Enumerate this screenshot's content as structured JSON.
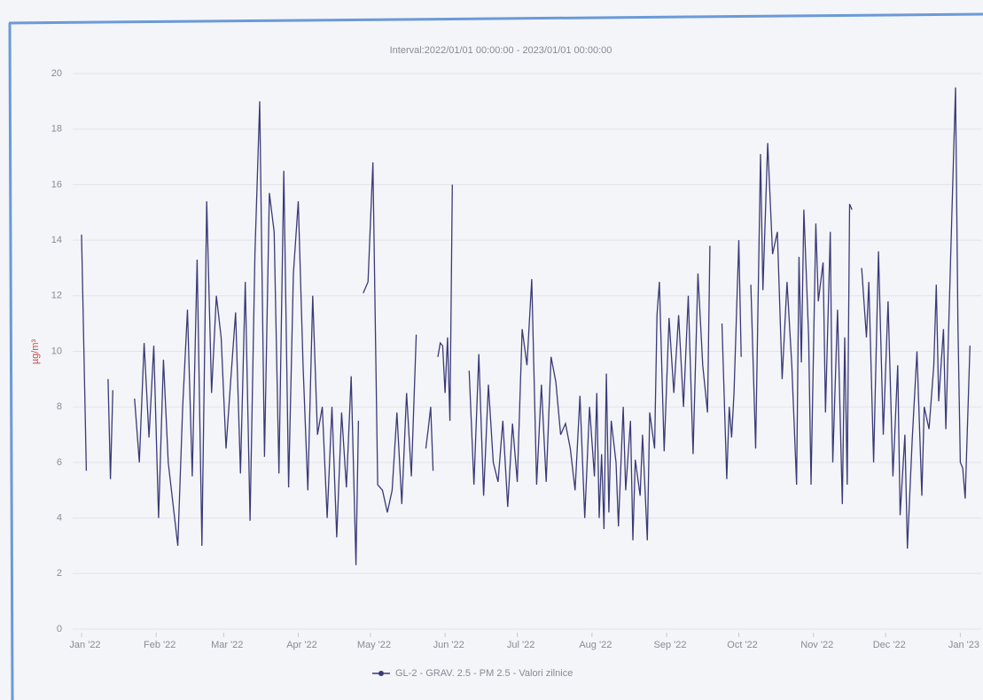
{
  "chart_data": {
    "type": "line",
    "title": "Interval:2022/01/01 00:00:00 - 2023/01/01 00:00:00",
    "y_label": "µg/m³",
    "xlim": [
      0,
      370
    ],
    "ylim": [
      0,
      20
    ],
    "yticks": [
      0,
      2,
      4,
      6,
      8,
      10,
      12,
      14,
      16,
      18,
      20
    ],
    "xticks": [
      {
        "value": 0,
        "label": "Jan '22"
      },
      {
        "value": 31,
        "label": "Feb '22"
      },
      {
        "value": 59,
        "label": "Mar '22"
      },
      {
        "value": 90,
        "label": "Apr '22"
      },
      {
        "value": 120,
        "label": "May '22"
      },
      {
        "value": 151,
        "label": "Jun '22"
      },
      {
        "value": 181,
        "label": "Jul '22"
      },
      {
        "value": 212,
        "label": "Aug '22"
      },
      {
        "value": 243,
        "label": "Sep '22"
      },
      {
        "value": 273,
        "label": "Oct '22"
      },
      {
        "value": 304,
        "label": "Nov '22"
      },
      {
        "value": 334,
        "label": "Dec '22"
      },
      {
        "value": 365,
        "label": "Jan '23"
      }
    ],
    "grid": true,
    "legend": "bottom",
    "x": [
      0,
      2,
      null,
      11,
      12,
      13,
      null,
      22,
      24,
      26,
      28,
      30,
      32,
      34,
      36,
      38,
      40,
      42,
      44,
      46,
      48,
      50,
      52,
      54,
      56,
      58,
      60,
      62,
      64,
      66,
      68,
      70,
      72,
      74,
      76,
      78,
      80,
      82,
      84,
      86,
      88,
      90,
      92,
      94,
      96,
      98,
      100,
      102,
      104,
      106,
      108,
      110,
      112,
      114,
      115,
      null,
      117,
      119,
      121,
      123,
      125,
      127,
      129,
      131,
      133,
      135,
      137,
      139,
      null,
      143,
      144,
      145,
      146,
      null,
      148,
      149,
      150,
      151,
      152,
      153,
      154,
      null,
      161,
      163,
      165,
      167,
      169,
      171,
      173,
      175,
      177,
      179,
      181,
      183,
      185,
      187,
      189,
      191,
      193,
      195,
      197,
      199,
      201,
      203,
      205,
      207,
      209,
      211,
      213,
      214,
      215,
      216,
      217,
      218,
      219,
      220,
      222,
      223,
      225,
      226,
      228,
      229,
      230,
      232,
      233,
      235,
      236,
      238,
      239,
      240,
      242,
      244,
      246,
      248,
      250,
      252,
      254,
      256,
      258,
      260,
      261,
      null,
      266,
      268,
      269,
      270,
      271,
      273,
      274,
      null,
      278,
      280,
      282,
      283,
      285,
      287,
      289,
      291,
      293,
      295,
      297,
      298,
      299,
      300,
      302,
      303,
      305,
      306,
      308,
      309,
      311,
      312,
      314,
      316,
      317,
      318,
      319,
      320,
      null,
      324,
      326,
      327,
      329,
      331,
      333,
      335,
      337,
      339,
      340,
      342,
      343,
      345,
      347,
      349,
      350,
      352,
      354,
      355,
      356,
      358,
      359,
      361,
      363,
      364,
      365,
      366,
      367,
      369
    ],
    "series": [
      {
        "name": "GL-2 - GRAV. 2.5 - PM 2.5 - Valori zilnice",
        "color": "#3a3a78",
        "values": [
          14.2,
          5.7,
          null,
          9.0,
          5.4,
          8.6,
          null,
          8.3,
          6.0,
          10.3,
          6.9,
          10.2,
          4.0,
          9.7,
          6.0,
          4.5,
          3.0,
          8.0,
          11.5,
          5.5,
          13.3,
          3.0,
          15.4,
          8.5,
          12.0,
          10.5,
          6.5,
          9.0,
          11.4,
          5.6,
          12.5,
          3.9,
          13.5,
          19.0,
          6.2,
          15.7,
          14.3,
          5.6,
          16.5,
          5.1,
          12.8,
          15.4,
          9.5,
          5.0,
          12.0,
          7.0,
          8.0,
          4.0,
          8.0,
          3.3,
          7.8,
          5.1,
          9.1,
          2.3,
          7.5,
          null,
          12.1,
          12.5,
          16.8,
          5.2,
          5.0,
          4.2,
          5.0,
          7.8,
          4.5,
          8.5,
          5.5,
          10.6,
          null,
          6.5,
          7.2,
          8.0,
          5.7,
          null,
          9.8,
          10.3,
          10.2,
          8.5,
          10.5,
          7.5,
          16.0,
          null,
          9.3,
          5.2,
          9.9,
          4.8,
          8.8,
          6.0,
          5.3,
          7.5,
          4.4,
          7.4,
          5.3,
          10.8,
          9.5,
          12.6,
          5.2,
          8.8,
          5.3,
          9.8,
          8.9,
          7.0,
          7.4,
          6.5,
          5.0,
          8.4,
          4.0,
          8.0,
          5.5,
          8.5,
          4.0,
          6.3,
          3.6,
          9.2,
          4.2,
          7.5,
          6.0,
          3.7,
          8.0,
          5.0,
          7.5,
          3.2,
          6.1,
          4.8,
          7.0,
          3.2,
          7.8,
          6.5,
          11.3,
          12.5,
          6.4,
          11.2,
          8.5,
          11.3,
          8.0,
          12.0,
          6.3,
          12.8,
          9.5,
          7.8,
          13.8,
          null,
          11.0,
          5.4,
          8.0,
          6.9,
          8.5,
          14.0,
          9.8,
          null,
          12.4,
          6.5,
          17.1,
          12.2,
          17.5,
          13.5,
          14.3,
          9.0,
          12.5,
          9.5,
          5.2,
          13.4,
          9.6,
          15.1,
          10.5,
          5.2,
          14.6,
          11.8,
          13.2,
          7.8,
          14.3,
          6.0,
          11.5,
          4.5,
          10.5,
          5.2,
          15.3,
          15.1,
          null,
          13.0,
          10.5,
          12.5,
          6.0,
          13.6,
          7.0,
          11.8,
          5.5,
          9.5,
          4.1,
          7.0,
          2.9,
          6.8,
          10.0,
          4.8,
          8.0,
          7.2,
          9.5,
          12.4,
          8.2,
          10.8,
          7.2,
          13.5,
          19.5,
          11.0,
          6.0,
          5.8,
          4.7,
          10.2
        ]
      }
    ]
  }
}
